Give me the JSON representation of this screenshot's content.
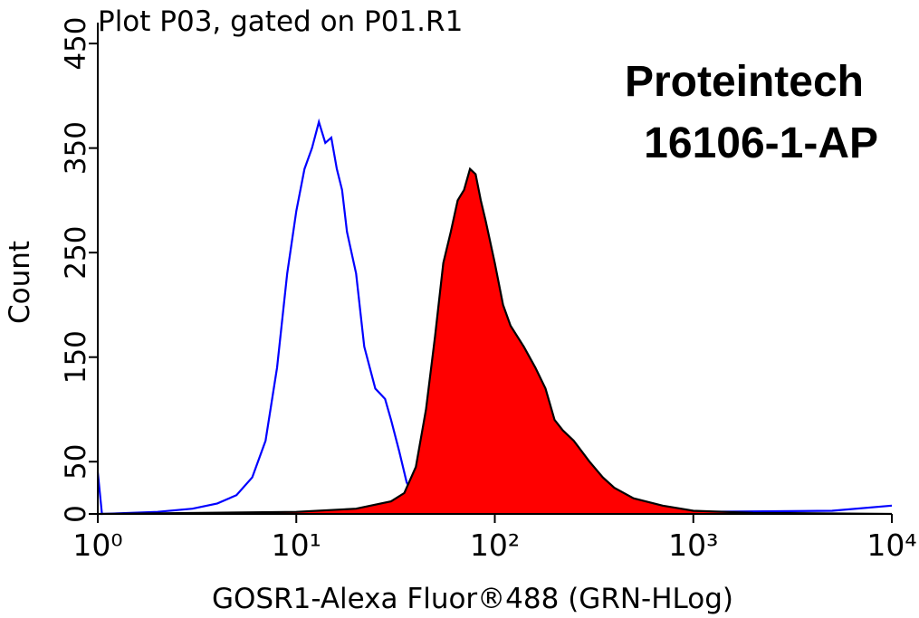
{
  "chart_data": {
    "type": "histogram-overlay",
    "title": "Plot P03, gated on P01.R1",
    "annotations": [
      "Proteintech",
      "16106-1-AP"
    ],
    "x_label": "GOSR1-Alexa Fluor®488 (GRN-HLog)",
    "y_label": "Count",
    "xscale": "log",
    "xlim": [
      1,
      10000
    ],
    "xticks": [
      {
        "value": 1,
        "label": "10⁰"
      },
      {
        "value": 10,
        "label": "10¹"
      },
      {
        "value": 100,
        "label": "10²"
      },
      {
        "value": 1000,
        "label": "10³"
      },
      {
        "value": 10000,
        "label": "10⁴"
      }
    ],
    "ylim": [
      0,
      470
    ],
    "yticks": [
      0,
      50,
      150,
      250,
      350,
      450
    ],
    "series": [
      {
        "color": "#0000ff",
        "x": [
          1,
          1.05,
          2,
          3,
          4,
          5,
          6,
          7,
          8,
          9,
          10,
          11,
          12,
          13,
          14,
          15,
          16,
          17,
          18,
          20,
          22,
          25,
          28,
          30,
          33,
          36,
          40,
          50,
          60,
          80,
          100,
          200,
          1000,
          5000,
          10000
        ],
        "values": [
          40,
          0,
          2,
          5,
          10,
          18,
          35,
          70,
          140,
          230,
          290,
          330,
          350,
          375,
          355,
          360,
          330,
          310,
          270,
          230,
          160,
          120,
          110,
          90,
          60,
          30,
          15,
          10,
          5,
          3,
          2,
          1,
          2,
          3,
          8
        ]
      },
      {
        "color": "#000000",
        "fill": "#ff0000",
        "x": [
          1,
          10,
          20,
          30,
          35,
          40,
          45,
          50,
          55,
          60,
          65,
          70,
          75,
          80,
          85,
          90,
          100,
          110,
          120,
          140,
          160,
          180,
          200,
          220,
          250,
          300,
          350,
          400,
          500,
          700,
          1000,
          2000,
          10000
        ],
        "values": [
          0,
          2,
          5,
          12,
          20,
          45,
          100,
          170,
          240,
          270,
          300,
          310,
          330,
          325,
          300,
          280,
          240,
          200,
          180,
          160,
          140,
          120,
          90,
          80,
          70,
          50,
          35,
          25,
          15,
          8,
          3,
          1,
          0
        ]
      }
    ]
  }
}
